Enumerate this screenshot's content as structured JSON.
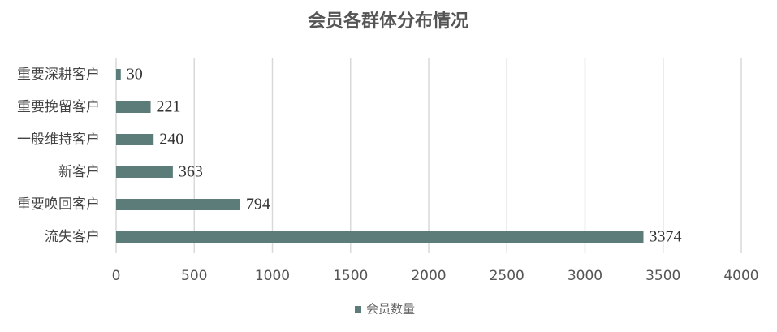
{
  "chart_data": {
    "type": "bar",
    "orientation": "horizontal",
    "title": "会员各群体分布情况",
    "categories": [
      "重要深耕客户",
      "重要挽留客户",
      "一般维持客户",
      "新客户",
      "重要唤回客户",
      "流失客户"
    ],
    "series": [
      {
        "name": "会员数量",
        "color": "#5b7c79",
        "values": [
          30,
          221,
          240,
          363,
          794,
          3374
        ]
      }
    ],
    "xlim": [
      0,
      4000
    ],
    "xticks": [
      0,
      500,
      1000,
      1500,
      2000,
      2500,
      3000,
      3500,
      4000
    ],
    "grid": true,
    "legend": "bottom",
    "data_labels": true
  }
}
